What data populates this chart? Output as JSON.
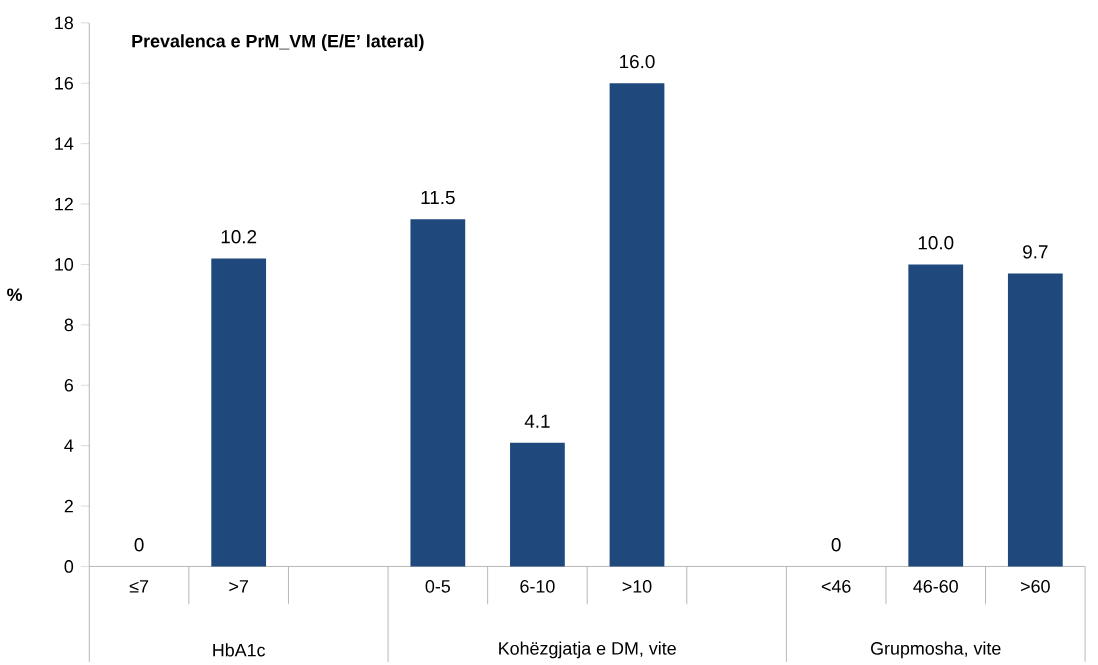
{
  "chart_data": {
    "type": "bar",
    "title": "Prevalenca e PrM_VM (E/E’ lateral)",
    "ylabel": "%",
    "categories": [
      "≤7",
      ">7",
      null,
      "0-5",
      "6-10",
      ">10",
      null,
      "<46",
      "46-60",
      ">60"
    ],
    "values": [
      0,
      10.2,
      null,
      11.5,
      4.1,
      16.0,
      null,
      0,
      10.0,
      9.7
    ],
    "value_labels": [
      "0",
      "10.2",
      null,
      "11.5",
      "4.1",
      "16.0",
      null,
      "0",
      "10.0",
      "9.7"
    ],
    "color": "#1f497d",
    "ylim": [
      0,
      18
    ],
    "yticks": [
      0,
      2,
      4,
      6,
      8,
      10,
      12,
      14,
      16,
      18
    ],
    "annotations": [
      "HbA1c",
      "Kohëzgjatja e DM, vite",
      "Grupmosha, vite"
    ],
    "grid": false
  }
}
